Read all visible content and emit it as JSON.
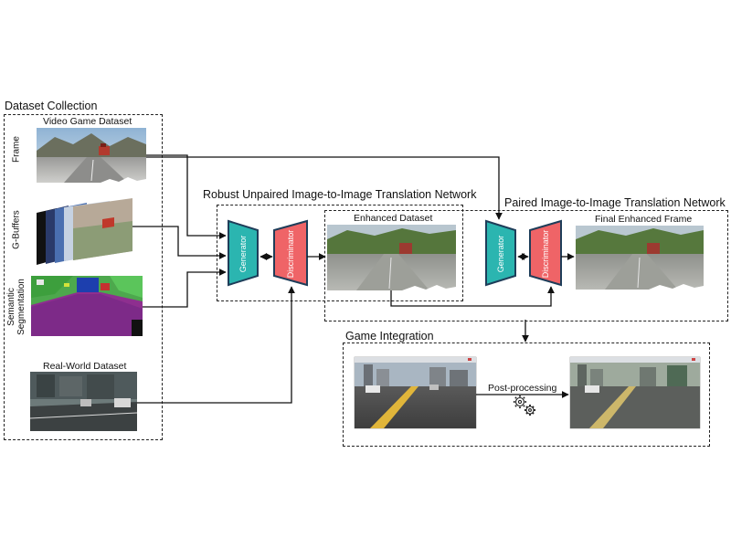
{
  "sections": {
    "dataset_collection": "Dataset Collection",
    "robust_network": "Robust Unpaired Image-to-Image Translation Network",
    "paired_network": "Paired Image-to-Image Translation Network",
    "game_integration": "Game Integration"
  },
  "labels": {
    "video_game_dataset": "Video Game Dataset",
    "frame": "Frame",
    "g_buffers": "G-Buffers",
    "semantic_line1": "Semantic",
    "semantic_line2": "Segmentation",
    "real_world_dataset": "Real-World Dataset",
    "enhanced_dataset": "Enhanced Dataset",
    "final_enhanced_frame": "Final Enhanced Frame",
    "post_processing": "Post-processing"
  },
  "blocks": {
    "generator": "Generator",
    "discriminator": "Discriminator",
    "generator_color": "#2bb5b0",
    "discriminator_color": "#ef6467",
    "stroke_color": "#1e3d59"
  },
  "icons": {
    "gears": "gears-icon",
    "bidirectional": "double-arrow-icon"
  }
}
